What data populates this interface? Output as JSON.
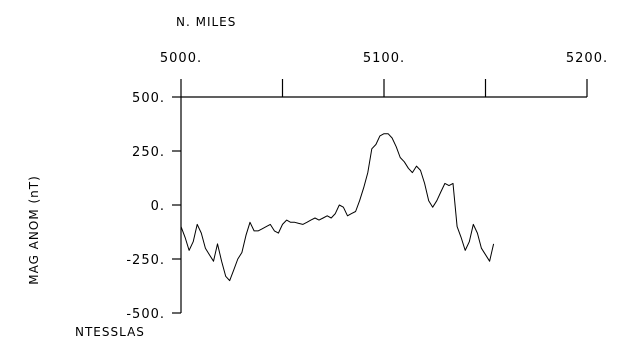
{
  "chart_data": {
    "type": "line",
    "xlabel": "N. MILES",
    "ylabel": "MAG ANOM (nT)",
    "yunit_label": "NTESSLAS",
    "xlim": [
      5000,
      5200
    ],
    "ylim": [
      -500,
      500
    ],
    "x_ticks": [
      5000,
      5050,
      5100,
      5150,
      5200
    ],
    "x_tick_labels": [
      "5000.",
      "5100.",
      "5200."
    ],
    "x_tick_label_values": [
      5000,
      5100,
      5200
    ],
    "y_ticks": [
      500,
      250,
      0,
      -250,
      -500
    ],
    "y_tick_labels": [
      "500.",
      "250.",
      "0.",
      "-250.",
      "-500."
    ],
    "x_axis_position": "top",
    "grid": false,
    "series": [
      {
        "x": [
          5000,
          5002,
          5004,
          5006,
          5008,
          5010,
          5012,
          5014,
          5016,
          5018,
          5020,
          5022,
          5024,
          5026,
          5028,
          5030,
          5032,
          5034,
          5036,
          5038,
          5040,
          5042,
          5044,
          5046,
          5048,
          5050,
          5052,
          5054,
          5056,
          5058,
          5060,
          5062,
          5064,
          5066,
          5068,
          5070,
          5072,
          5074,
          5076,
          5078,
          5080,
          5082,
          5084,
          5086,
          5088,
          5090,
          5092,
          5094,
          5096,
          5098,
          5100,
          5102,
          5104,
          5106,
          5108,
          5110,
          5112,
          5114,
          5116,
          5118,
          5120,
          5122,
          5124,
          5126,
          5128,
          5130,
          5132,
          5134,
          5136,
          5138,
          5140,
          5142,
          5144,
          5146,
          5148,
          5150,
          5152,
          5154
        ],
        "y": [
          -100,
          -150,
          -210,
          -170,
          -90,
          -130,
          -200,
          -230,
          -260,
          -180,
          -260,
          -330,
          -350,
          -300,
          -250,
          -220,
          -140,
          -80,
          -120,
          -120,
          -110,
          -100,
          -90,
          -120,
          -130,
          -90,
          -70,
          -80,
          -80,
          -85,
          -90,
          -80,
          -70,
          -60,
          -70,
          -60,
          -50,
          -60,
          -40,
          0,
          -10,
          -50,
          -40,
          -30,
          20,
          80,
          150,
          260,
          280,
          320,
          330,
          330,
          310,
          270,
          220,
          200,
          170,
          150,
          180,
          160,
          100,
          20,
          -10,
          20,
          60,
          100,
          90,
          100,
          -100,
          -150,
          -210,
          -170,
          -90,
          -130,
          -200,
          -230,
          -260,
          -180
        ]
      }
    ]
  }
}
